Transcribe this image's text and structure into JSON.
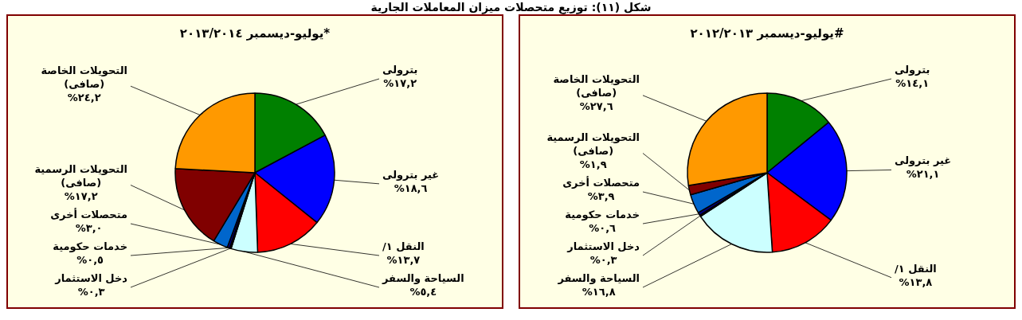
{
  "chart_data": [
    {
      "type": "pie",
      "title": "يوليو-ديسمبر ٢٠١٣/٢٠١٤*",
      "annotations": [
        "شكل (١١): توزيع متحصلات ميزان المعاملات الجارية"
      ],
      "categories": [
        "بترولى",
        "غير بترولى",
        "النقل ١/",
        "السياحة والسفر",
        "دخل الاستثمار",
        "خدمات حكومية",
        "متحصلات أخرى",
        "التحويلات الرسمية (صافى)",
        "التحويلات الخاصة (صافى)"
      ],
      "values": [
        17.2,
        18.6,
        13.7,
        5.4,
        0.3,
        0.5,
        3.0,
        17.2,
        24.2
      ],
      "value_labels": [
        "١٧,٢%",
        "١٨,٦%",
        "١٣,٧%",
        "٥,٤%",
        "٠,٣%",
        "٠,٥%",
        "٣,٠%",
        "١٧,٢%",
        "٢٤,٢%"
      ],
      "colors": [
        "#008000",
        "#0000ff",
        "#ff0000",
        "#ccffff",
        "#1a1a1a",
        "#000080",
        "#0066cc",
        "#800000",
        "#ff9900"
      ]
    },
    {
      "type": "pie",
      "title": "يوليو-ديسمبر ٢٠١٢/٢٠١٣#",
      "categories": [
        "بترولى",
        "غير بترولى",
        "النقل ١/",
        "السياحة والسفر",
        "دخل الاستثمار",
        "خدمات حكومية",
        "متحصلات أخرى",
        "التحويلات الرسمية (صافى)",
        "التحويلات الخاصة (صافى)"
      ],
      "values": [
        14.1,
        21.1,
        13.8,
        16.8,
        0.3,
        0.6,
        3.9,
        1.9,
        27.6
      ],
      "value_labels": [
        "١٤,١%",
        "٢١,١%",
        "١٣,٨%",
        "١٦,٨%",
        "٠,٣%",
        "٠,٦%",
        "٣,٩%",
        "١,٩%",
        "٢٧,٦%"
      ],
      "colors": [
        "#008000",
        "#0000ff",
        "#ff0000",
        "#ccffff",
        "#1a1a1a",
        "#000080",
        "#0066cc",
        "#800000",
        "#ff9900"
      ]
    }
  ]
}
